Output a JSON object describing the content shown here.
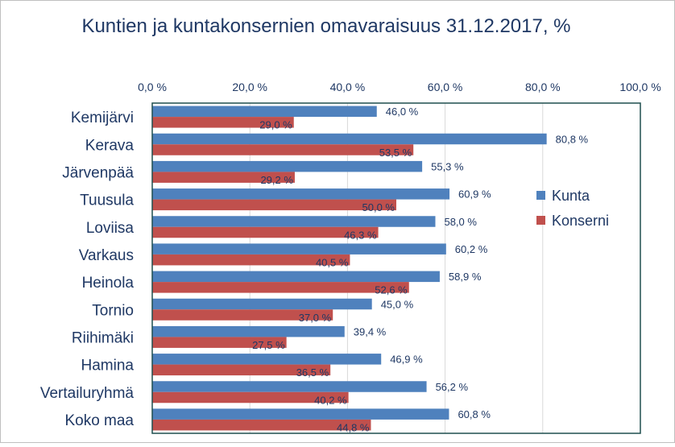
{
  "chart_data": {
    "type": "bar",
    "orientation": "horizontal",
    "title": "Kuntien ja kuntakonsernien omavaraisuus 31.12.2017, %",
    "categories": [
      "Kemijärvi",
      "Kerava",
      "Järvenpää",
      "Tuusula",
      "Loviisa",
      "Varkaus",
      "Heinola",
      "Tornio",
      "Riihimäki",
      "Hamina",
      "Vertailuryhmä",
      "Koko maa"
    ],
    "series": [
      {
        "name": "Kunta",
        "color": "#4f81bd",
        "values": [
          46.0,
          80.8,
          55.3,
          60.9,
          58.0,
          60.2,
          58.9,
          45.0,
          39.4,
          46.9,
          56.2,
          60.8
        ],
        "labels": [
          "46,0 %",
          "80,8 %",
          "55,3 %",
          "60,9 %",
          "58,0 %",
          "60,2 %",
          "58,9 %",
          "45,0 %",
          "39,4 %",
          "46,9 %",
          "56,2 %",
          "60,8 %"
        ]
      },
      {
        "name": "Konserni",
        "color": "#c0504d",
        "values": [
          29.0,
          53.5,
          29.2,
          50.0,
          46.3,
          40.5,
          52.6,
          37.0,
          27.5,
          36.5,
          40.2,
          44.8
        ],
        "labels": [
          "29,0 %",
          "53,5 %",
          "29,2 %",
          "50,0 %",
          "46,3 %",
          "40,5 %",
          "52,6 %",
          "37,0 %",
          "27,5 %",
          "36,5 %",
          "40,2 %",
          "44,8 %"
        ]
      }
    ],
    "xlim": [
      0,
      100
    ],
    "xticks": [
      0,
      20,
      40,
      60,
      80,
      100
    ],
    "xtick_labels": [
      "0,0 %",
      "20,0 %",
      "40,0 %",
      "60,0 %",
      "80,0 %",
      "100,0 %"
    ],
    "x_axis_position": "top",
    "grid": true,
    "legend_position": "right"
  }
}
